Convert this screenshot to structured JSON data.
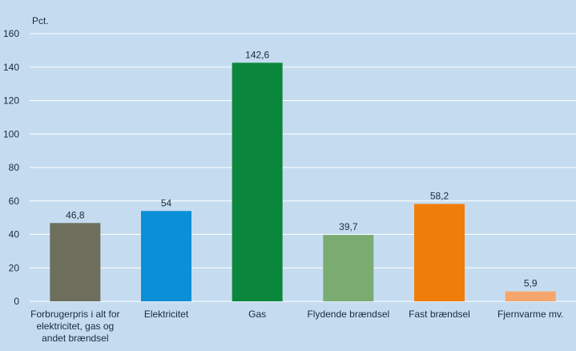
{
  "chart_data": {
    "type": "bar",
    "ylabel": "Pct.",
    "ylim": [
      0,
      160
    ],
    "yticks": [
      0,
      20,
      40,
      60,
      80,
      100,
      120,
      140,
      160
    ],
    "grid": "horizontal",
    "categories": [
      [
        "Forbrugerpris i alt for",
        "elektricitet, gas og",
        "andet brændsel"
      ],
      [
        "Elektricitet"
      ],
      [
        "Gas"
      ],
      [
        "Flydende brændsel"
      ],
      [
        "Fast brændsel"
      ],
      [
        "Fjernvarme mv."
      ]
    ],
    "values": [
      46.8,
      54,
      142.6,
      39.7,
      58.2,
      5.9
    ],
    "value_labels": [
      "46,8",
      "54",
      "142,6",
      "39,7",
      "58,2",
      "5,9"
    ],
    "colors": [
      "#6e6e5c",
      "#0b8fd6",
      "#0b873d",
      "#7aac72",
      "#ef7d0a",
      "#f5a66a"
    ]
  }
}
